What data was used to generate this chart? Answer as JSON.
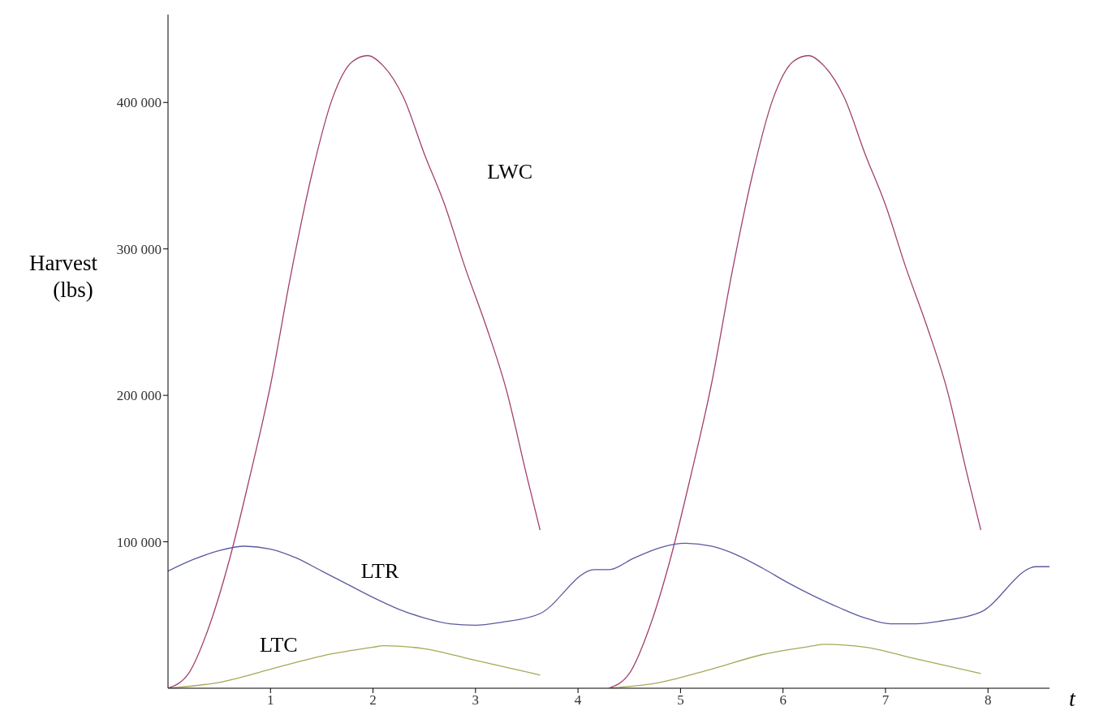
{
  "chart_data": {
    "type": "line",
    "ylabel": "Harvest (lbs)",
    "xlabel": "t",
    "xlim": [
      0,
      8.6
    ],
    "xticks": [
      1,
      2,
      3,
      4,
      5,
      6,
      7,
      8
    ],
    "ylim": [
      0,
      460000
    ],
    "yticks": [
      {
        "value": 100000,
        "label": "100 000"
      },
      {
        "value": 200000,
        "label": "200 000"
      },
      {
        "value": 300000,
        "label": "300 000"
      },
      {
        "value": 400000,
        "label": "400 000"
      }
    ],
    "grid": false,
    "legend": false,
    "marker": "none",
    "line_style": "solid",
    "series": [
      {
        "name": "LWC",
        "color": "#a0406e",
        "x": [
          0,
          0.2,
          0.4,
          0.6,
          0.8,
          1.0,
          1.2,
          1.4,
          1.6,
          1.8,
          1.95,
          2.1,
          2.3,
          2.5,
          2.7,
          2.9,
          3.1,
          3.3,
          3.5,
          3.63,
          3.9,
          4.3,
          4.5,
          4.7,
          4.9,
          5.1,
          5.3,
          5.5,
          5.7,
          5.9,
          6.1,
          6.25,
          6.4,
          6.6,
          6.8,
          7.0,
          7.2,
          7.4,
          7.6,
          7.8,
          7.93
        ],
        "values": [
          0,
          10000,
          42000,
          88000,
          145000,
          207000,
          283000,
          350000,
          402000,
          428000,
          432000,
          425000,
          403000,
          365000,
          330000,
          287000,
          248000,
          204000,
          145000,
          108000,
          null,
          0,
          10000,
          42000,
          88000,
          145000,
          207000,
          283000,
          350000,
          402000,
          428000,
          432000,
          425000,
          403000,
          365000,
          330000,
          287000,
          248000,
          204000,
          145000,
          108000
        ]
      },
      {
        "name": "LTR",
        "color": "#5a5aa0",
        "x": [
          0,
          0.25,
          0.5,
          0.75,
          1.0,
          1.25,
          1.5,
          1.75,
          2.0,
          2.25,
          2.5,
          2.75,
          3.0,
          3.25,
          3.63,
          4.16,
          4.3,
          4.55,
          4.8,
          5.05,
          5.3,
          5.55,
          5.8,
          6.05,
          6.3,
          6.55,
          6.8,
          7.05,
          7.3,
          7.55,
          7.93,
          8.47,
          8.6
        ],
        "values": [
          80000,
          88000,
          94000,
          97000,
          95000,
          89000,
          80000,
          71000,
          62000,
          54000,
          48000,
          44000,
          43000,
          45000,
          51000,
          81000,
          81000,
          89000,
          96000,
          99000,
          97000,
          91000,
          82000,
          72000,
          63000,
          55000,
          48000,
          44000,
          44000,
          46000,
          52000,
          83000,
          83000
        ]
      },
      {
        "name": "LTC",
        "color": "#a8a858",
        "x": [
          0,
          0.5,
          1.0,
          1.5,
          2.0,
          2.1,
          2.5,
          3.0,
          3.63,
          3.9,
          4.3,
          4.8,
          5.3,
          5.8,
          6.3,
          6.4,
          6.8,
          7.3,
          7.93
        ],
        "values": [
          0,
          4000,
          13000,
          22000,
          28000,
          29000,
          27000,
          19000,
          9000,
          null,
          0,
          4000,
          13000,
          23000,
          29000,
          30000,
          28000,
          20000,
          10000
        ]
      }
    ]
  }
}
